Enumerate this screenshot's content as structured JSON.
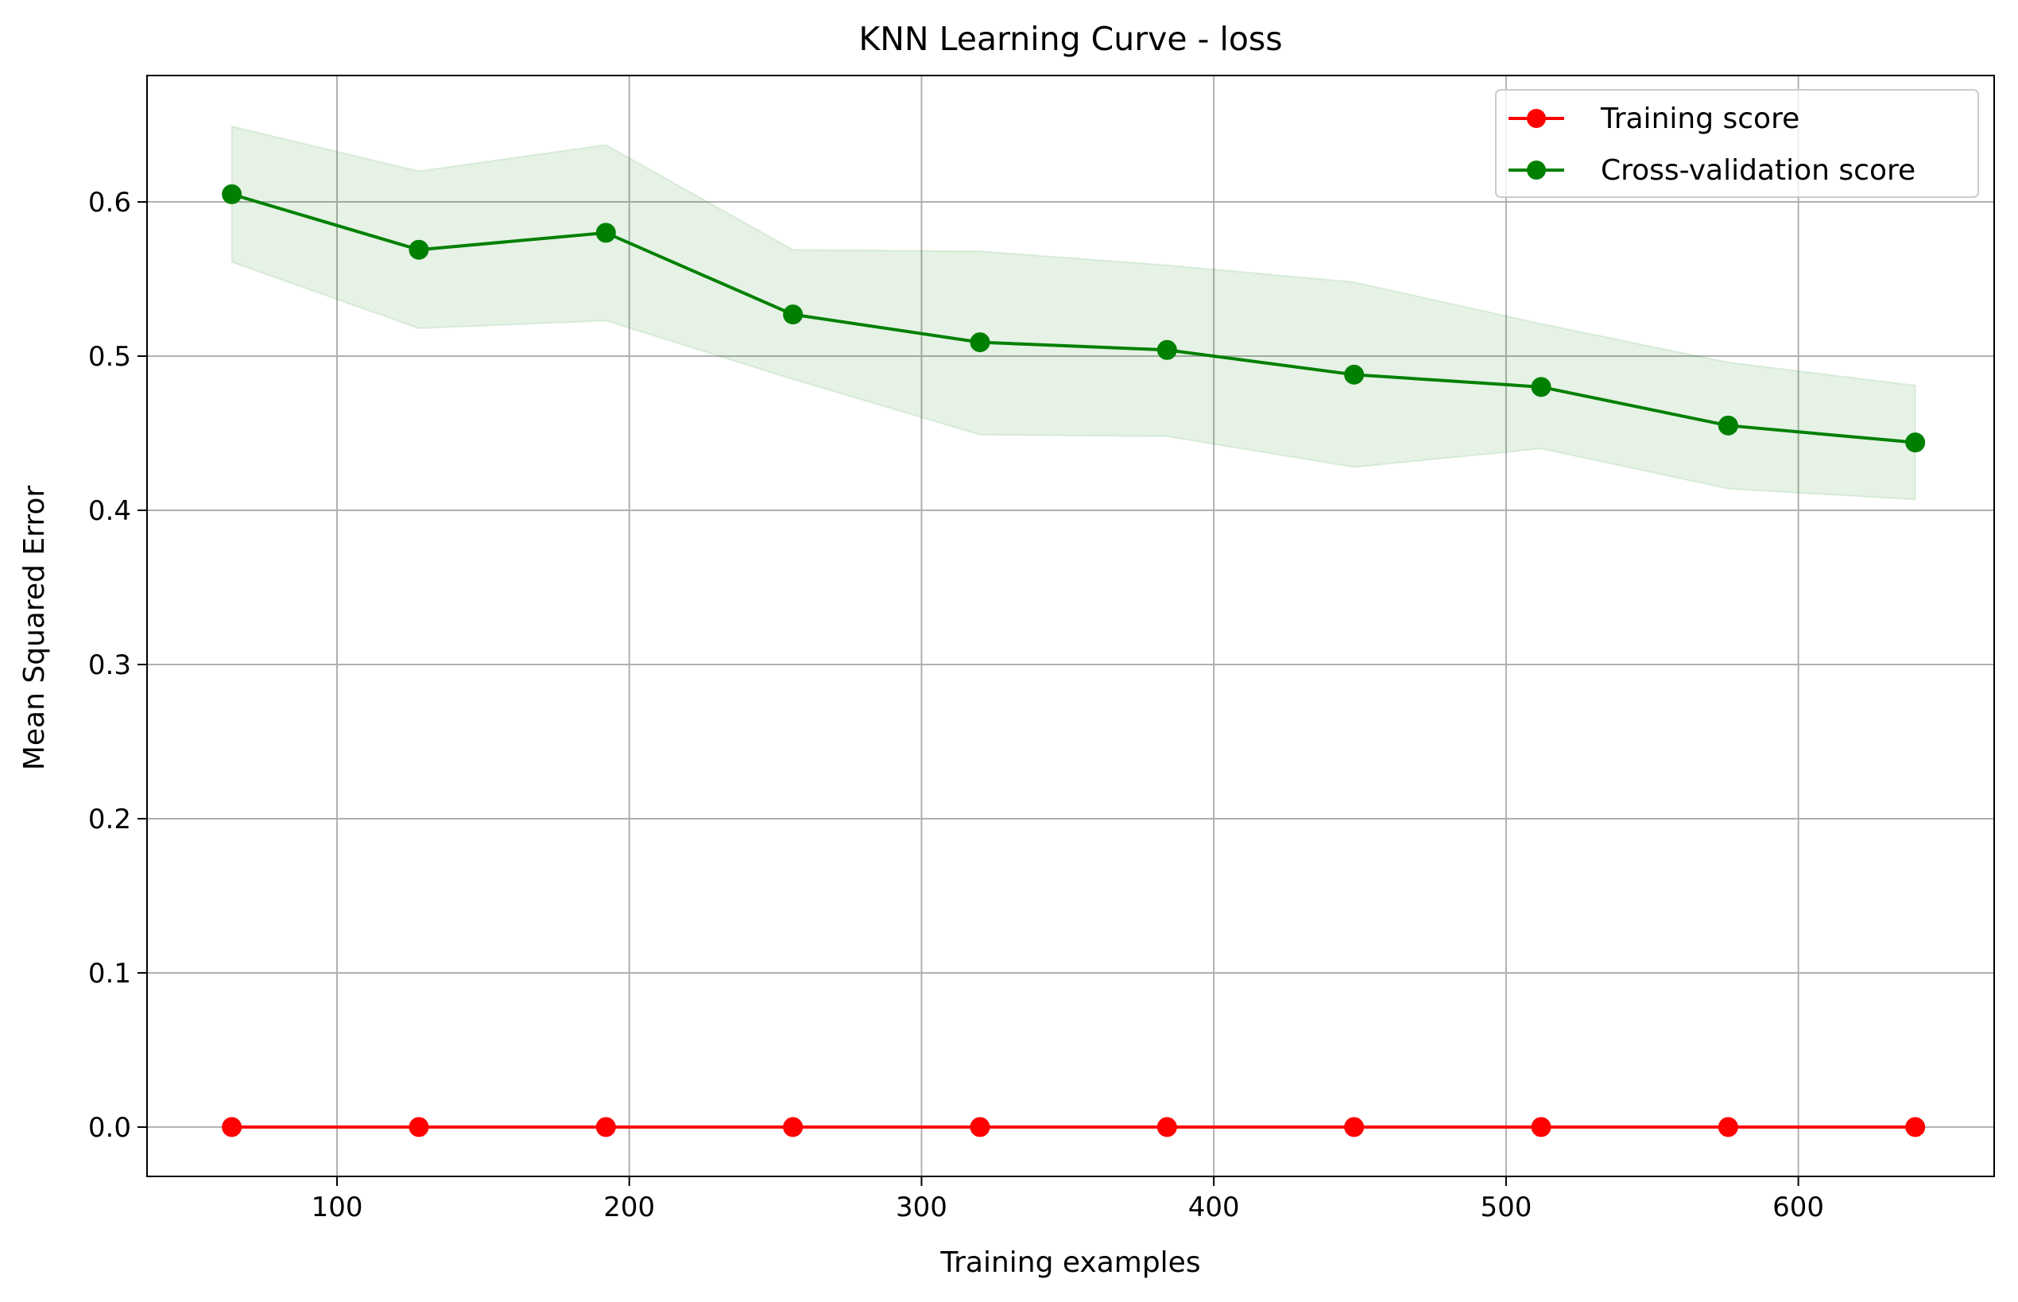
{
  "chart_data": {
    "type": "line",
    "title": "KNN Learning Curve - loss",
    "xlabel": "Training examples",
    "ylabel": "Mean Squared Error",
    "xlim": [
      35,
      667
    ],
    "ylim": [
      -0.032,
      0.682
    ],
    "xticks": [
      100,
      200,
      300,
      400,
      500,
      600
    ],
    "yticks": [
      0.0,
      0.1,
      0.2,
      0.3,
      0.4,
      0.5,
      0.6
    ],
    "xtick_labels": [
      "100",
      "200",
      "300",
      "400",
      "500",
      "600"
    ],
    "ytick_labels": [
      "0.0",
      "0.1",
      "0.2",
      "0.3",
      "0.4",
      "0.5",
      "0.6"
    ],
    "grid": true,
    "legend_position": "top-right",
    "x": [
      64,
      128,
      192,
      256,
      320,
      384,
      448,
      512,
      576,
      640
    ],
    "series": [
      {
        "name": "Training score",
        "color": "#ff0000",
        "values": [
          0.0,
          0.0,
          0.0,
          0.0,
          0.0,
          0.0,
          0.0,
          0.0,
          0.0,
          0.0
        ],
        "band_lower": [
          0.0,
          0.0,
          0.0,
          0.0,
          0.0,
          0.0,
          0.0,
          0.0,
          0.0,
          0.0
        ],
        "band_upper": [
          0.0,
          0.0,
          0.0,
          0.0,
          0.0,
          0.0,
          0.0,
          0.0,
          0.0,
          0.0
        ]
      },
      {
        "name": "Cross-validation score",
        "color": "#008000",
        "values": [
          0.605,
          0.569,
          0.58,
          0.527,
          0.509,
          0.504,
          0.488,
          0.48,
          0.455,
          0.444
        ],
        "band_lower": [
          0.561,
          0.518,
          0.523,
          0.485,
          0.449,
          0.448,
          0.428,
          0.44,
          0.414,
          0.407
        ],
        "band_upper": [
          0.649,
          0.62,
          0.637,
          0.569,
          0.568,
          0.559,
          0.548,
          0.521,
          0.496,
          0.481
        ],
        "band_color": "#008000"
      }
    ]
  }
}
